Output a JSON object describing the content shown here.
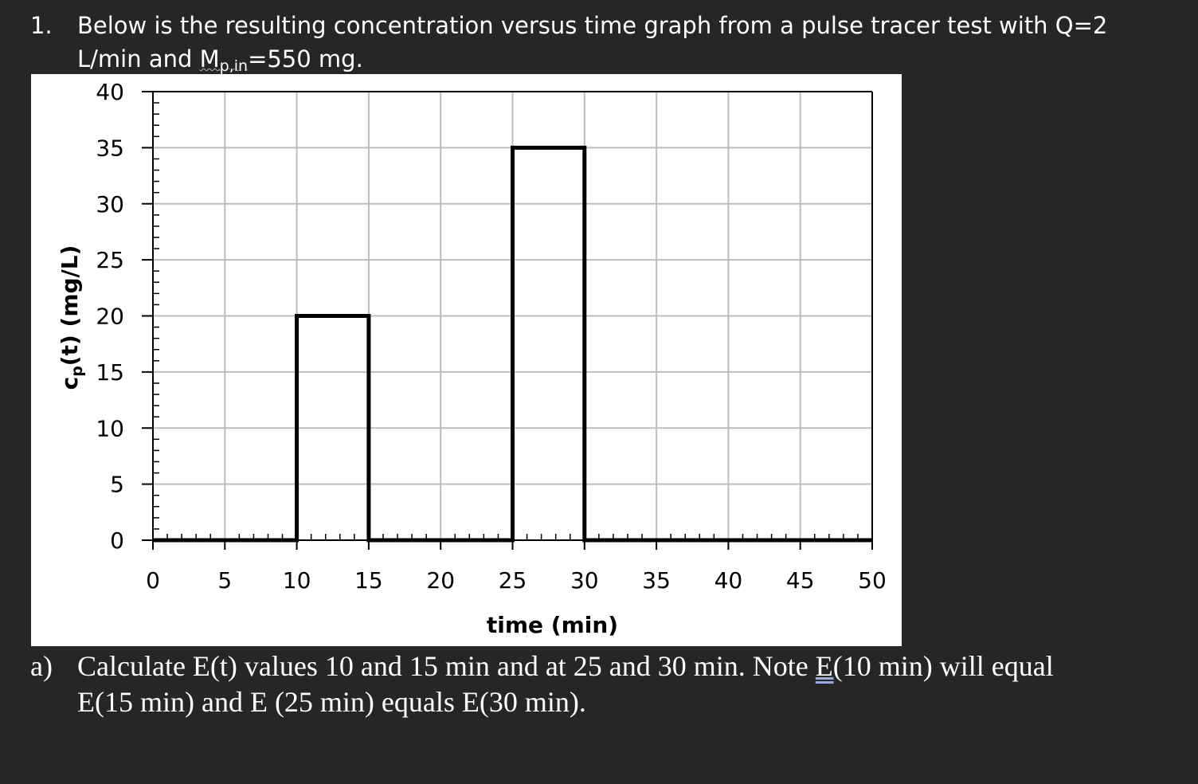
{
  "question": {
    "number": "1.",
    "line1": "Below is the resulting concentration versus time graph from a pulse tracer test with Q=2",
    "line2_prefix": "L/min and ",
    "line2_M": "M",
    "line2_sub": "p,in",
    "line2_suffix": "=550 mg."
  },
  "chart_data": {
    "type": "line",
    "xlabel": "time (min)",
    "ylabel_main": "c",
    "ylabel_sub": "p",
    "ylabel_rest": "(t) (mg/L)",
    "xlim": [
      0,
      50
    ],
    "ylim": [
      0,
      40
    ],
    "xticks": [
      0,
      5,
      10,
      15,
      20,
      25,
      30,
      35,
      40,
      45,
      50
    ],
    "yticks": [
      0,
      5,
      10,
      15,
      20,
      25,
      30,
      35,
      40
    ],
    "grid": true,
    "series": [
      {
        "x": [
          0,
          10,
          10,
          15,
          15,
          25,
          25,
          30,
          30,
          50
        ],
        "y": [
          0,
          0,
          20,
          20,
          0,
          0,
          35,
          35,
          0,
          0
        ]
      }
    ]
  },
  "part_a": {
    "label": "a)",
    "line1_prefix": "Calculate E(t) values 10 and 15 min and at 25 and 30 min. Note ",
    "line1_underlined": "E(",
    "line1_suffix": "10 min) will equal",
    "line2": "E(15 min) and E (25 min) equals E(30 min)."
  }
}
